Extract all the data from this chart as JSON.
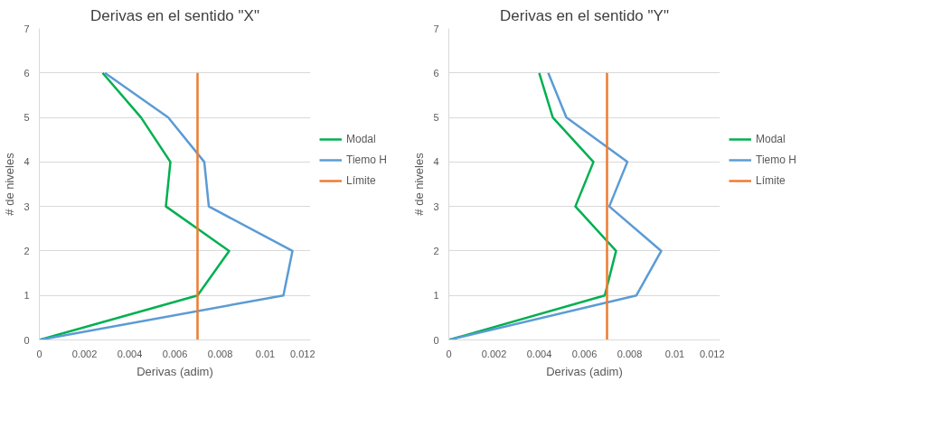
{
  "chart_data": [
    {
      "type": "line",
      "title": "Derivas en el sentido \"X\"",
      "xlabel": "Derivas (adim)",
      "ylabel": "# de niveles",
      "xlim": [
        0,
        0.012
      ],
      "ylim": [
        0,
        7
      ],
      "xticks": [
        0,
        0.002,
        0.004,
        0.006,
        0.008,
        0.01,
        0.012
      ],
      "yticks": [
        0,
        1,
        2,
        3,
        4,
        5,
        6,
        7
      ],
      "grid": "y",
      "legend": "right",
      "marker": "none",
      "series": [
        {
          "name": "Modal",
          "color": "#00b050",
          "x": [
            0,
            0.007,
            0.0084,
            0.0056,
            0.0058,
            0.0045,
            0.0028
          ],
          "values": [
            0,
            1,
            2,
            3,
            4,
            5,
            6
          ]
        },
        {
          "name": "Tiemo H",
          "color": "#5b9bd5",
          "x": [
            0,
            0.0108,
            0.0112,
            0.0075,
            0.0073,
            0.0057,
            0.0029
          ],
          "values": [
            0,
            1,
            2,
            3,
            4,
            5,
            6
          ]
        },
        {
          "name": "Límite",
          "color": "#ed7d31",
          "x": [
            0.007,
            0.007
          ],
          "values": [
            0,
            6
          ]
        }
      ]
    },
    {
      "type": "line",
      "title": "Derivas en el sentido \"Y\"",
      "xlabel": "Derivas (adim)",
      "ylabel": "# de niveles",
      "xlim": [
        0,
        0.012
      ],
      "ylim": [
        0,
        7
      ],
      "xticks": [
        0,
        0.002,
        0.004,
        0.006,
        0.008,
        0.01,
        0.012
      ],
      "yticks": [
        0,
        1,
        2,
        3,
        4,
        5,
        6,
        7
      ],
      "grid": "y",
      "legend": "right",
      "marker": "none",
      "series": [
        {
          "name": "Modal",
          "color": "#00b050",
          "x": [
            0,
            0.0069,
            0.0074,
            0.0056,
            0.0064,
            0.0046,
            0.004
          ],
          "values": [
            0,
            1,
            2,
            3,
            4,
            5,
            6
          ]
        },
        {
          "name": "Tiemo H",
          "color": "#5b9bd5",
          "x": [
            0,
            0.0083,
            0.0094,
            0.0071,
            0.0079,
            0.0052,
            0.0044
          ],
          "values": [
            0,
            1,
            2,
            3,
            4,
            5,
            6
          ]
        },
        {
          "name": "Límite",
          "color": "#ed7d31",
          "x": [
            0.007,
            0.007
          ],
          "values": [
            0,
            6
          ]
        }
      ]
    }
  ]
}
